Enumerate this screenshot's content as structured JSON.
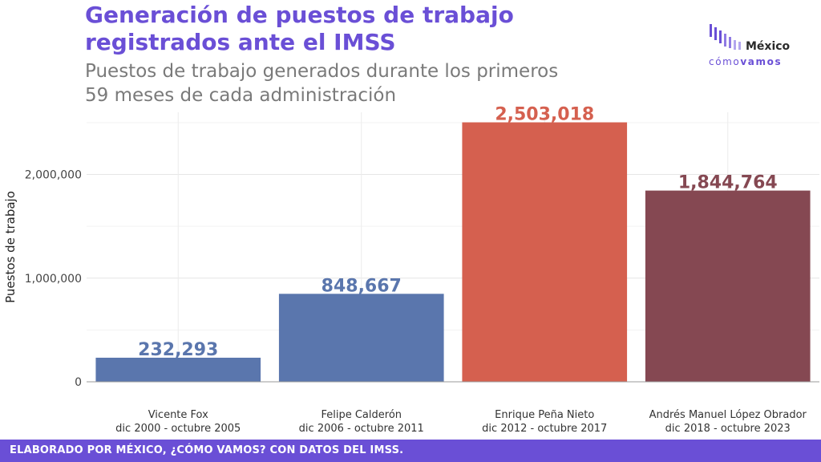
{
  "header": {
    "title_line1": "Generación de puestos de trabajo",
    "title_line2": "registrados ante el IMSS",
    "subtitle_line1": "Puestos de trabajo generados durante los primeros",
    "subtitle_line2": "59 meses de cada administración"
  },
  "logo": {
    "word": "México",
    "tag_light": "cómo",
    "tag_bold": "vamos"
  },
  "footer": {
    "text": "ELABORADO POR MÉXICO, ¿CÓMO VAMOS? CON DATOS DEL IMSS."
  },
  "chart_data": {
    "type": "bar",
    "title": "Generación de puestos de trabajo registrados ante el IMSS",
    "subtitle": "Puestos de trabajo generados durante los primeros 59 meses de cada administración",
    "xlabel": "",
    "ylabel": "Puestos de trabajo",
    "ylim": [
      0,
      2600000
    ],
    "yticks": [
      0,
      1000000,
      2000000
    ],
    "ytick_labels": [
      "0",
      "1,000,000",
      "2,000,000"
    ],
    "grid": true,
    "categories": [
      {
        "name": "Vicente Fox",
        "period": "dic 2000 - octubre 2005"
      },
      {
        "name": "Felipe Calderón",
        "period": "dic 2006 - octubre 2011"
      },
      {
        "name": "Enrique Peña Nieto",
        "period": "dic 2012 - octubre 2017"
      },
      {
        "name": "Andrés Manuel López Obrador",
        "period": "dic 2018 - octubre 2023"
      }
    ],
    "values": [
      232293,
      848667,
      2503018,
      1844764
    ],
    "value_labels": [
      "232,293",
      "848,667",
      "2,503,018",
      "1,844,764"
    ],
    "bar_colors": [
      "#5a76ad",
      "#5a76ad",
      "#d5604f",
      "#854852"
    ]
  }
}
